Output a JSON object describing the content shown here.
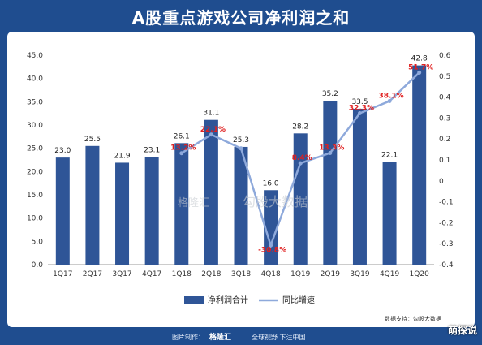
{
  "title": "A股重点游戏公司净利润之和",
  "source": "数据支持：勾股大数据",
  "footer": {
    "maker_label": "图片制作：",
    "brand": "格隆汇",
    "slogan": "全球视野 下注中国"
  },
  "watermarks": [
    "格隆汇",
    "勾股大数据"
  ],
  "corner_badge": "萌探说",
  "colors": {
    "bar": "#2f5597",
    "line": "#8ea9db",
    "growth_label": "#e02020",
    "header_bg": "#1f4d8f"
  },
  "chart_data": {
    "type": "bar",
    "categories": [
      "1Q17",
      "2Q17",
      "3Q17",
      "4Q17",
      "1Q18",
      "2Q18",
      "3Q18",
      "4Q18",
      "1Q19",
      "2Q19",
      "3Q19",
      "4Q19",
      "1Q20"
    ],
    "series": [
      {
        "name": "净利润合计",
        "type": "bar",
        "axis": "left",
        "values": [
          23.0,
          25.5,
          21.9,
          23.1,
          26.1,
          31.1,
          25.3,
          16.0,
          28.2,
          35.2,
          33.5,
          22.1,
          42.8
        ],
        "labels": [
          "23.0",
          "25.5",
          "21.9",
          "23.1",
          "26.1",
          "31.1",
          "25.3",
          "16.0",
          "28.2",
          "35.2",
          "33.5",
          "22.1",
          "42.8"
        ]
      },
      {
        "name": "同比增速",
        "type": "line",
        "axis": "right",
        "values": [
          null,
          null,
          null,
          null,
          0.132,
          0.221,
          0.155,
          -0.308,
          0.084,
          0.133,
          0.323,
          0.381,
          0.517
        ],
        "labels": [
          null,
          null,
          null,
          null,
          "13.2%",
          "22.1%",
          "",
          "-30.8%",
          "8.4%",
          "13.3%",
          "32.3%",
          "38.1%",
          "51.7%"
        ]
      }
    ],
    "y_left": {
      "min": 0,
      "max": 45,
      "ticks": [
        "0.0",
        "5.0",
        "10.0",
        "15.0",
        "20.0",
        "25.0",
        "30.0",
        "35.0",
        "40.0",
        "45.0"
      ]
    },
    "y_right": {
      "min": -0.4,
      "max": 0.6,
      "ticks": [
        "-0.4",
        "-0.3",
        "-0.2",
        "-0.1",
        "0",
        "0.1",
        "0.2",
        "0.3",
        "0.4",
        "0.5",
        "0.6"
      ]
    },
    "legend": {
      "position": "bottom-center",
      "items": [
        "净利润合计",
        "同比增速"
      ]
    },
    "grid": false
  }
}
